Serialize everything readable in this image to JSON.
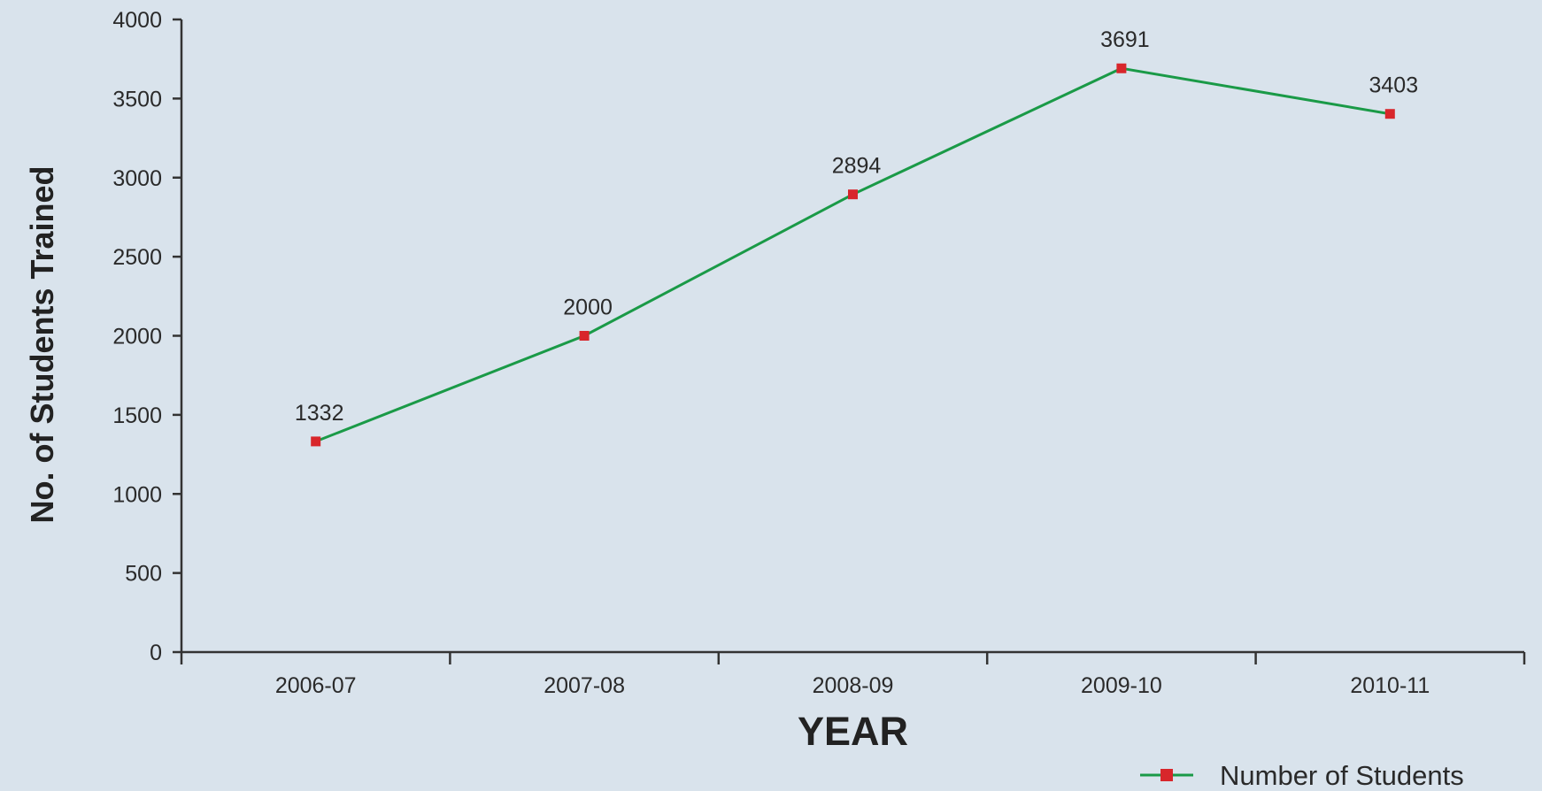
{
  "chart_data": {
    "type": "line",
    "categories": [
      "2006-07",
      "2007-08",
      "2008-09",
      "2009-10",
      "2010-11"
    ],
    "series": [
      {
        "name": "Number of Students",
        "values": [
          1332,
          2000,
          2894,
          3691,
          3403
        ],
        "data_labels": [
          "1332",
          "2000",
          "2894",
          "3691",
          "3403"
        ],
        "line_color": "#1a9a47",
        "marker_color": "#d8262b",
        "marker": "square"
      }
    ],
    "xlabel": "YEAR",
    "ylabel": "No. of Students Trained",
    "ylim": [
      0,
      4000
    ],
    "yticks": [
      0,
      500,
      1000,
      1500,
      2000,
      2500,
      3000,
      3500,
      4000
    ],
    "ytick_labels": [
      "0",
      "500",
      "1000",
      "1500",
      "2000",
      "2500",
      "3000",
      "3500",
      "4000"
    ],
    "grid": false,
    "legend_position": "bottom-right",
    "background_color": "#d9e3ec",
    "axis_color": "#333333"
  }
}
